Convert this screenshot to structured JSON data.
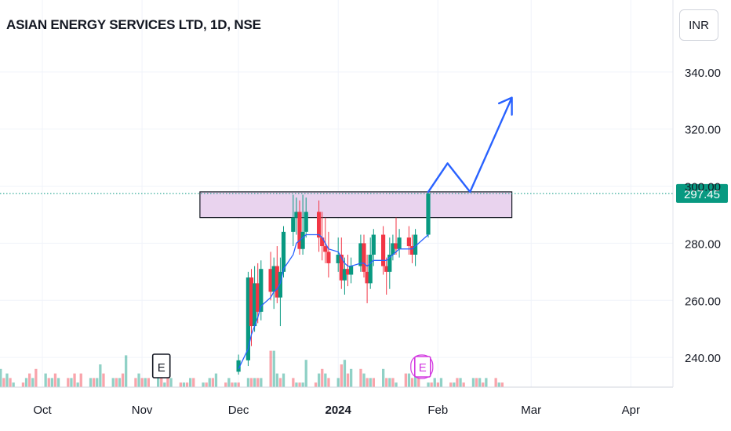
{
  "header": {
    "title": "ASIAN ENERGY SERVICES LTD, 1D, NSE"
  },
  "currency": {
    "label": "INR"
  },
  "price_badge": {
    "label": "297.45",
    "color": "#089981"
  },
  "earnings_markers": [
    {
      "label": "E",
      "x": "2023-11-07",
      "style": "outline"
    },
    {
      "label": "E",
      "x": "2024-01-27",
      "style": "highlight"
    }
  ],
  "chart_data": {
    "type": "candlestick",
    "title": "ASIAN ENERGY SERVICES LTD, 1D, NSE",
    "x_tick_labels": [
      "Oct",
      "Nov",
      "Dec",
      "2024",
      "Feb",
      "Mar",
      "Apr"
    ],
    "x_tick_dates": [
      "2023-10-01",
      "2023-11-01",
      "2023-12-01",
      "2024-01-01",
      "2024-02-01",
      "2024-03-01",
      "2024-04-01"
    ],
    "y_tick_labels": [
      "240.00",
      "260.00",
      "280.00",
      "300.00",
      "320.00",
      "340.00"
    ],
    "y_range": [
      234,
      346
    ],
    "last_price": 297.45,
    "colors": {
      "up": "#089981",
      "down": "#f23645",
      "ma": "#2962ff",
      "projection": "#2962ff",
      "zone_fill": "#e9d3ee",
      "zone_border": "#131722"
    },
    "candles": [
      {
        "date": "2023-12-01",
        "open": 235,
        "high": 241,
        "low": 234,
        "close": 239
      },
      {
        "date": "2023-12-04",
        "open": 239,
        "high": 270,
        "low": 237,
        "close": 268
      },
      {
        "date": "2023-12-05",
        "open": 268,
        "high": 271,
        "low": 244,
        "close": 251
      },
      {
        "date": "2023-12-06",
        "open": 251,
        "high": 272,
        "low": 249,
        "close": 266
      },
      {
        "date": "2023-12-07",
        "open": 266,
        "high": 273,
        "low": 252,
        "close": 256
      },
      {
        "date": "2023-12-08",
        "open": 256,
        "high": 274,
        "low": 253,
        "close": 271
      },
      {
        "date": "2023-12-11",
        "open": 271,
        "high": 277,
        "low": 260,
        "close": 263
      },
      {
        "date": "2023-12-12",
        "open": 263,
        "high": 275,
        "low": 257,
        "close": 272
      },
      {
        "date": "2023-12-13",
        "open": 272,
        "high": 279,
        "low": 259,
        "close": 261
      },
      {
        "date": "2023-12-14",
        "open": 261,
        "high": 275,
        "low": 251,
        "close": 270
      },
      {
        "date": "2023-12-15",
        "open": 270,
        "high": 286,
        "low": 268,
        "close": 284
      },
      {
        "date": "2023-12-18",
        "open": 284,
        "high": 297,
        "low": 279,
        "close": 289
      },
      {
        "date": "2023-12-19",
        "open": 289,
        "high": 296,
        "low": 283,
        "close": 291
      },
      {
        "date": "2023-12-20",
        "open": 291,
        "high": 295,
        "low": 276,
        "close": 278
      },
      {
        "date": "2023-12-21",
        "open": 278,
        "high": 297,
        "low": 276,
        "close": 284
      },
      {
        "date": "2023-12-22",
        "open": 284,
        "high": 296,
        "low": 282,
        "close": 291
      },
      {
        "date": "2023-12-26",
        "open": 291,
        "high": 295,
        "low": 277,
        "close": 282
      },
      {
        "date": "2023-12-27",
        "open": 282,
        "high": 291,
        "low": 274,
        "close": 279
      },
      {
        "date": "2023-12-28",
        "open": 279,
        "high": 289,
        "low": 273,
        "close": 277
      },
      {
        "date": "2023-12-29",
        "open": 277,
        "high": 284,
        "low": 268,
        "close": 273
      },
      {
        "date": "2024-01-01",
        "open": 273,
        "high": 282,
        "low": 270,
        "close": 276
      },
      {
        "date": "2024-01-02",
        "open": 276,
        "high": 282,
        "low": 264,
        "close": 267
      },
      {
        "date": "2024-01-03",
        "open": 267,
        "high": 275,
        "low": 262,
        "close": 271
      },
      {
        "date": "2024-01-04",
        "open": 271,
        "high": 276,
        "low": 265,
        "close": 269
      },
      {
        "date": "2024-01-05",
        "open": 269,
        "high": 275,
        "low": 266,
        "close": 272
      },
      {
        "date": "2024-01-08",
        "open": 272,
        "high": 283,
        "low": 270,
        "close": 280
      },
      {
        "date": "2024-01-09",
        "open": 280,
        "high": 283,
        "low": 268,
        "close": 270
      },
      {
        "date": "2024-01-10",
        "open": 270,
        "high": 276,
        "low": 259,
        "close": 266
      },
      {
        "date": "2024-01-11",
        "open": 266,
        "high": 282,
        "low": 264,
        "close": 276
      },
      {
        "date": "2024-01-12",
        "open": 276,
        "high": 285,
        "low": 272,
        "close": 283
      },
      {
        "date": "2024-01-15",
        "open": 283,
        "high": 286,
        "low": 269,
        "close": 272
      },
      {
        "date": "2024-01-16",
        "open": 272,
        "high": 275,
        "low": 262,
        "close": 270
      },
      {
        "date": "2024-01-17",
        "open": 270,
        "high": 282,
        "low": 264,
        "close": 276
      },
      {
        "date": "2024-01-18",
        "open": 276,
        "high": 283,
        "low": 274,
        "close": 280
      },
      {
        "date": "2024-01-19",
        "open": 280,
        "high": 289,
        "low": 276,
        "close": 278
      },
      {
        "date": "2024-01-20",
        "open": 278,
        "high": 285,
        "low": 275,
        "close": 282
      },
      {
        "date": "2024-01-23",
        "open": 282,
        "high": 286,
        "low": 276,
        "close": 279
      },
      {
        "date": "2024-01-24",
        "open": 279,
        "high": 283,
        "low": 273,
        "close": 276
      },
      {
        "date": "2024-01-25",
        "open": 276,
        "high": 285,
        "low": 272,
        "close": 283
      },
      {
        "date": "2024-01-29",
        "open": 283,
        "high": 298,
        "low": 282,
        "close": 297.45
      }
    ],
    "moving_average": [
      {
        "date": "2023-12-01",
        "value": 236
      },
      {
        "date": "2023-12-04",
        "value": 243
      },
      {
        "date": "2023-12-05",
        "value": 248
      },
      {
        "date": "2023-12-06",
        "value": 251
      },
      {
        "date": "2023-12-07",
        "value": 254
      },
      {
        "date": "2023-12-08",
        "value": 258
      },
      {
        "date": "2023-12-11",
        "value": 261
      },
      {
        "date": "2023-12-12",
        "value": 263
      },
      {
        "date": "2023-12-13",
        "value": 264
      },
      {
        "date": "2023-12-14",
        "value": 266
      },
      {
        "date": "2023-12-15",
        "value": 271
      },
      {
        "date": "2023-12-18",
        "value": 276
      },
      {
        "date": "2023-12-19",
        "value": 280
      },
      {
        "date": "2023-12-20",
        "value": 281
      },
      {
        "date": "2023-12-21",
        "value": 282
      },
      {
        "date": "2023-12-22",
        "value": 283
      },
      {
        "date": "2023-12-26",
        "value": 283
      },
      {
        "date": "2023-12-27",
        "value": 282
      },
      {
        "date": "2023-12-28",
        "value": 280
      },
      {
        "date": "2023-12-29",
        "value": 278
      },
      {
        "date": "2024-01-01",
        "value": 277
      },
      {
        "date": "2024-01-02",
        "value": 275
      },
      {
        "date": "2024-01-03",
        "value": 273
      },
      {
        "date": "2024-01-04",
        "value": 272
      },
      {
        "date": "2024-01-05",
        "value": 272
      },
      {
        "date": "2024-01-08",
        "value": 273
      },
      {
        "date": "2024-01-09",
        "value": 273
      },
      {
        "date": "2024-01-10",
        "value": 272
      },
      {
        "date": "2024-01-11",
        "value": 273
      },
      {
        "date": "2024-01-12",
        "value": 274
      },
      {
        "date": "2024-01-15",
        "value": 274
      },
      {
        "date": "2024-01-16",
        "value": 274
      },
      {
        "date": "2024-01-17",
        "value": 275
      },
      {
        "date": "2024-01-18",
        "value": 276
      },
      {
        "date": "2024-01-19",
        "value": 277
      },
      {
        "date": "2024-01-20",
        "value": 278
      },
      {
        "date": "2024-01-23",
        "value": 278
      },
      {
        "date": "2024-01-24",
        "value": 278
      },
      {
        "date": "2024-01-25",
        "value": 279
      },
      {
        "date": "2024-01-29",
        "value": 283
      }
    ],
    "volume_series": {
      "name": "Volume",
      "start_date": "2023-09-15",
      "values": [
        4,
        4,
        2,
        3,
        2,
        1,
        1,
        2,
        3,
        2,
        4,
        3,
        2,
        2,
        3,
        2,
        2,
        2,
        3,
        1,
        3,
        2,
        2,
        2,
        5,
        3,
        2,
        2,
        2,
        3,
        7,
        2,
        3,
        2,
        2,
        2,
        3,
        2,
        1,
        2,
        2,
        1,
        1,
        1,
        2,
        2,
        1,
        1,
        2,
        2,
        3,
        1,
        2,
        1,
        1,
        1,
        2,
        2,
        2,
        2,
        2,
        8,
        8,
        3,
        2,
        3,
        2,
        1,
        1,
        1,
        6,
        1,
        3,
        4,
        3,
        2,
        2,
        5,
        6,
        3,
        4,
        4,
        3,
        2,
        2,
        2,
        4,
        2,
        2,
        2,
        1,
        3,
        3,
        2,
        3,
        2,
        1,
        1,
        2,
        1,
        2,
        1,
        1,
        2,
        2,
        1,
        2,
        2,
        2,
        1,
        2,
        2,
        1,
        1
      ],
      "directions": [
        "up",
        "up",
        "down",
        "up",
        "down",
        "up",
        "down",
        "up",
        "down",
        "up",
        "down",
        "up",
        "down",
        "up",
        "down",
        "up",
        "down",
        "up",
        "down",
        "up",
        "down",
        "up",
        "down",
        "up",
        "up",
        "down",
        "up",
        "down",
        "up",
        "down",
        "up",
        "down",
        "up",
        "down",
        "up",
        "down",
        "up",
        "down",
        "up",
        "down",
        "up",
        "down",
        "up",
        "down",
        "up",
        "down",
        "up",
        "down",
        "up",
        "down",
        "up",
        "down",
        "up",
        "down",
        "up",
        "down",
        "up",
        "down",
        "up",
        "down",
        "up",
        "down",
        "up",
        "up",
        "down",
        "up",
        "down",
        "up",
        "down",
        "up",
        "up",
        "down",
        "up",
        "down",
        "up",
        "down",
        "up",
        "down",
        "up",
        "down",
        "up",
        "down",
        "up",
        "down",
        "up",
        "down",
        "up",
        "down",
        "up",
        "down",
        "up",
        "down",
        "up",
        "down",
        "up",
        "down",
        "up",
        "down",
        "up",
        "down",
        "up",
        "down",
        "up",
        "down",
        "up",
        "down",
        "up",
        "down",
        "up",
        "down",
        "up",
        "down",
        "up",
        "down"
      ]
    },
    "resistance_zone": {
      "low": 289,
      "high": 298,
      "start": "2023-11-19",
      "end": "2024-02-24"
    },
    "projection_path": [
      {
        "date": "2024-01-29",
        "value": 298
      },
      {
        "date": "2024-02-04",
        "value": 308
      },
      {
        "date": "2024-02-11",
        "value": 298
      },
      {
        "date": "2024-02-24",
        "value": 331
      },
      {
        "date": "2024-02-20",
        "value": 329
      },
      {
        "date": "2024-02-24",
        "value": 331
      },
      {
        "date": "2024-02-24",
        "value": 325
      }
    ]
  }
}
